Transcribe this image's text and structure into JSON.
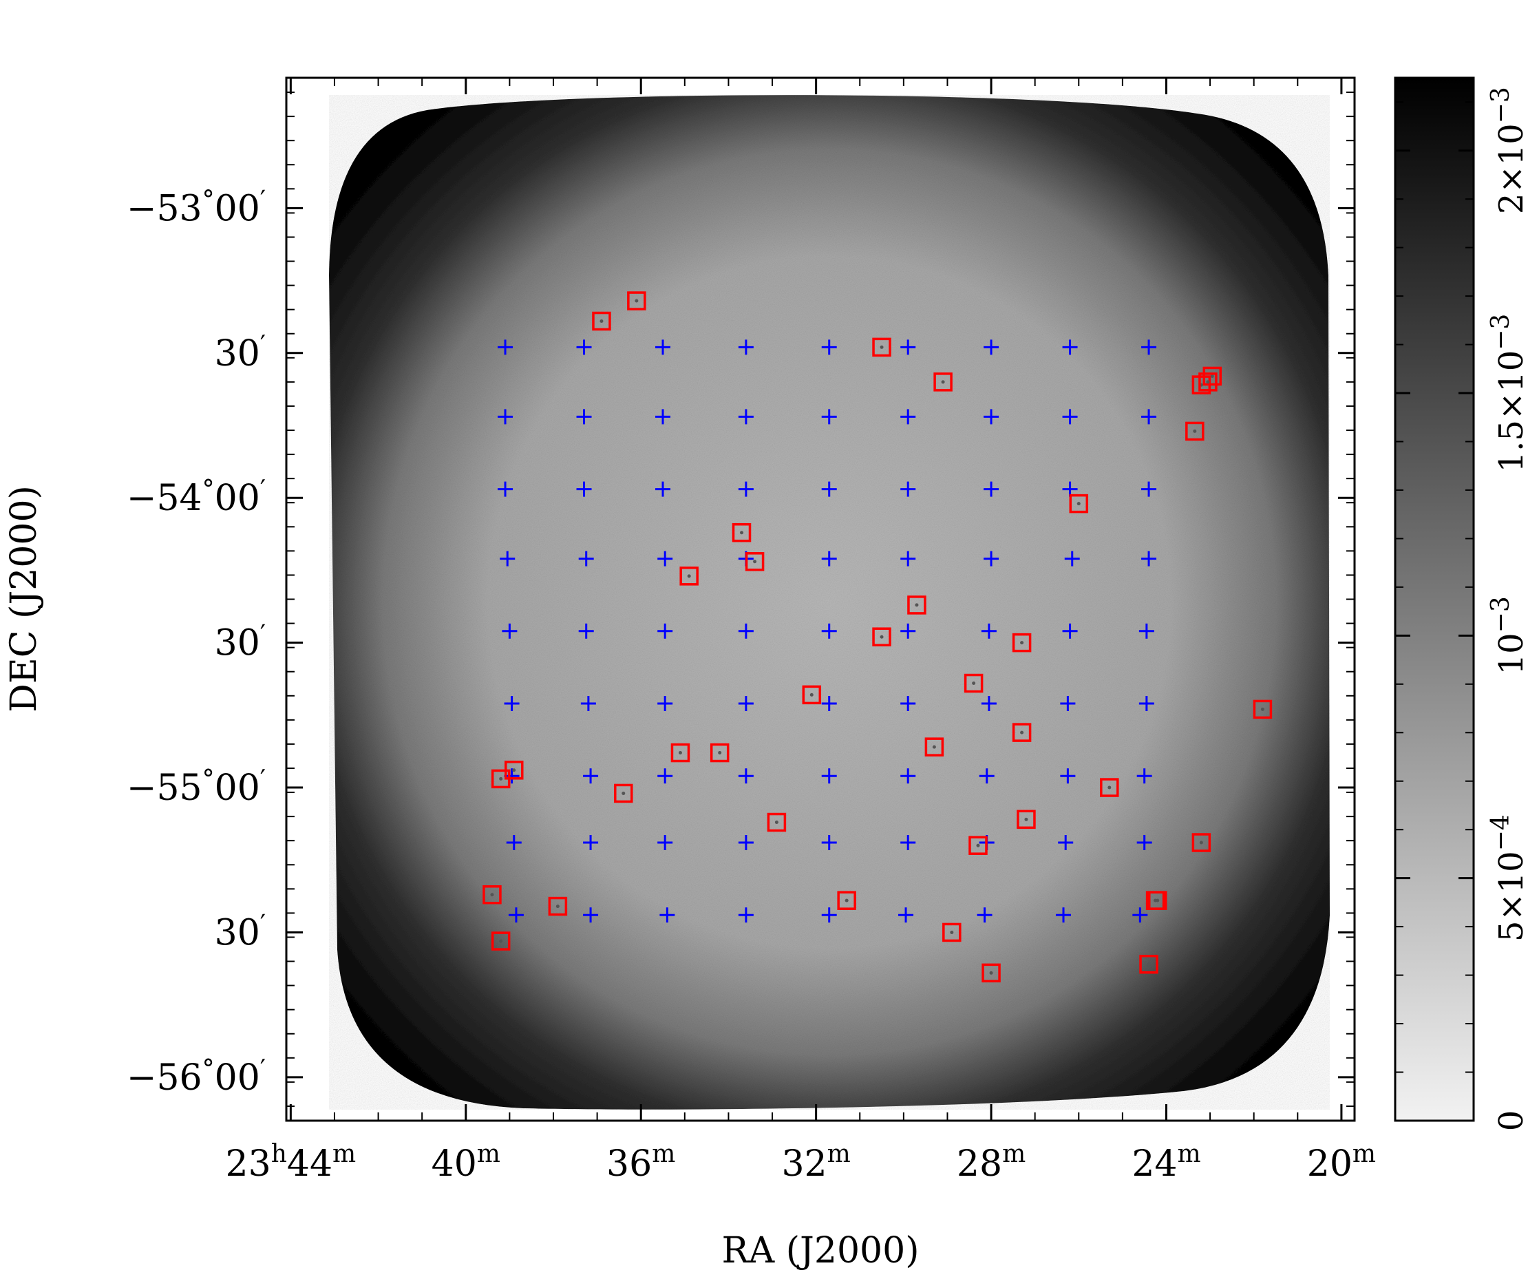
{
  "chart_data": {
    "type": "scatter",
    "image": "sky-map-greyscale",
    "xlabel": "RA (J2000)",
    "ylabel": "DEC (J2000)",
    "x_unit": "RA minutes of 23h",
    "y_unit": "degrees",
    "xlim": [
      44.1,
      19.7
    ],
    "ylim": [
      -56.15,
      -52.55
    ],
    "x_ticks": [
      {
        "value": 44,
        "h": "23",
        "m": "44"
      },
      {
        "value": 40,
        "h": "",
        "m": "40"
      },
      {
        "value": 36,
        "h": "",
        "m": "36"
      },
      {
        "value": 32,
        "h": "",
        "m": "32"
      },
      {
        "value": 28,
        "h": "",
        "m": "28"
      },
      {
        "value": 24,
        "h": "",
        "m": "24"
      },
      {
        "value": 20,
        "h": "",
        "m": "20"
      }
    ],
    "x_unit_h": "h",
    "x_unit_m": "m",
    "y_ticks": [
      {
        "value": -53.0,
        "deg": "−53",
        "min": "00",
        "show_deg": true
      },
      {
        "value": -53.5,
        "deg": "",
        "min": "30",
        "show_deg": false
      },
      {
        "value": -54.0,
        "deg": "−54",
        "min": "00",
        "show_deg": true
      },
      {
        "value": -54.5,
        "deg": "",
        "min": "30",
        "show_deg": false
      },
      {
        "value": -55.0,
        "deg": "−55",
        "min": "00",
        "show_deg": true
      },
      {
        "value": -55.5,
        "deg": "",
        "min": "30",
        "show_deg": false
      },
      {
        "value": -56.0,
        "deg": "−56",
        "min": "00",
        "show_deg": true
      }
    ],
    "deg_sym": "°",
    "arcmin_sym": "′",
    "series": [
      {
        "marker": "plus",
        "color": "#0000ff",
        "rows": [
          {
            "dec": -53.48,
            "ra": [
              39.1,
              37.3,
              35.5,
              33.6,
              31.7,
              29.9,
              28.0,
              26.2,
              24.4
            ]
          },
          {
            "dec": -53.72,
            "ra": [
              39.1,
              37.3,
              35.5,
              33.6,
              31.7,
              29.9,
              28.0,
              26.2,
              24.4
            ]
          },
          {
            "dec": -53.97,
            "ra": [
              39.1,
              37.3,
              35.5,
              33.6,
              31.7,
              29.9,
              28.0,
              26.2,
              24.4
            ]
          },
          {
            "dec": -54.21,
            "ra": [
              39.05,
              37.25,
              35.45,
              33.6,
              31.7,
              29.9,
              28.0,
              26.15,
              24.4
            ]
          },
          {
            "dec": -54.46,
            "ra": [
              39.0,
              37.25,
              35.45,
              33.6,
              31.7,
              29.9,
              28.05,
              26.2,
              24.45
            ]
          },
          {
            "dec": -54.71,
            "ra": [
              38.95,
              37.2,
              35.45,
              33.6,
              31.7,
              29.9,
              28.05,
              26.25,
              24.45
            ]
          },
          {
            "dec": -54.96,
            "ra": [
              38.95,
              37.15,
              35.45,
              33.6,
              31.7,
              29.9,
              28.1,
              26.25,
              24.5
            ]
          },
          {
            "dec": -55.19,
            "ra": [
              38.9,
              37.15,
              35.45,
              33.6,
              31.7,
              29.9,
              28.1,
              26.3,
              24.5
            ]
          },
          {
            "dec": -55.44,
            "ra": [
              38.85,
              37.15,
              35.4,
              33.6,
              31.7,
              29.95,
              28.15,
              26.35,
              24.6
            ]
          }
        ]
      },
      {
        "marker": "square",
        "color": "#ff0000",
        "ra": [
          36.9,
          36.1,
          30.5,
          29.1,
          22.95,
          23.2,
          23.05,
          23.35,
          26.0,
          33.7,
          33.4,
          34.9,
          29.7,
          30.5,
          27.3,
          32.1,
          28.4,
          21.8,
          27.3,
          29.3,
          34.2,
          35.1,
          39.2,
          38.9,
          36.4,
          25.3,
          32.9,
          27.2,
          28.3,
          23.2,
          39.4,
          37.9,
          31.3,
          24.2,
          24.25,
          39.2,
          28.9,
          24.4,
          28.0
        ],
        "dec": [
          -53.39,
          -53.32,
          -53.48,
          -53.6,
          -53.58,
          -53.61,
          -53.6,
          -53.77,
          -54.02,
          -54.12,
          -54.22,
          -54.27,
          -54.37,
          -54.48,
          -54.5,
          -54.68,
          -54.64,
          -54.73,
          -54.81,
          -54.86,
          -54.88,
          -54.88,
          -54.97,
          -54.94,
          -55.02,
          -55.0,
          -55.12,
          -55.11,
          -55.2,
          -55.19,
          -55.37,
          -55.41,
          -55.39,
          -55.39,
          -55.39,
          -55.53,
          -55.5,
          -55.61,
          -55.64
        ]
      }
    ],
    "colorbar": {
      "type": "heatmap",
      "range": [
        0,
        0.00215
      ],
      "ticks": [
        {
          "value": 0,
          "label": "0",
          "exp": ""
        },
        {
          "value": 0.0005,
          "label": "5×10",
          "exp": "−4"
        },
        {
          "value": 0.001,
          "label": "10",
          "exp": "−3"
        },
        {
          "value": 0.0015,
          "label": "1.5×10",
          "exp": "−3"
        },
        {
          "value": 0.002,
          "label": "2×10",
          "exp": "−3"
        }
      ],
      "color_low": "#f2f2f2",
      "color_high": "#000000"
    },
    "colors": {
      "field_interior": "#a6a6a6",
      "field_edge": "#0a0a0a"
    }
  }
}
